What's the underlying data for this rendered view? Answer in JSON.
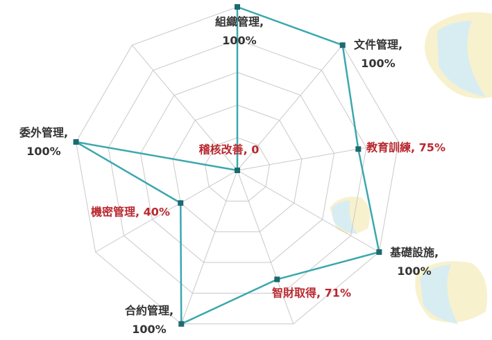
{
  "chart_data": {
    "type": "radar",
    "values": [
      100,
      100,
      75,
      100,
      71,
      100,
      40,
      100,
      0
    ],
    "value_labels": [
      "組織管理,\n100%",
      "文件管理,\n100%",
      "教育訓練, 75%",
      "基礎設施,\n100%",
      "智財取得, 71%",
      "合約管理,\n100%",
      "機密管理, 40%",
      "委外管理,\n100%",
      "稽核改善, 0"
    ],
    "label_colors": [
      "#333333",
      "#333333",
      "#b8282e",
      "#333333",
      "#b8282e",
      "#333333",
      "#b8282e",
      "#333333",
      "#b8282e"
    ],
    "rlim": [
      0,
      100
    ],
    "rticks": [
      20,
      40,
      60,
      80,
      100
    ],
    "color": "#3ba7ae",
    "marker_color": "#1d6a70",
    "grid": true
  }
}
